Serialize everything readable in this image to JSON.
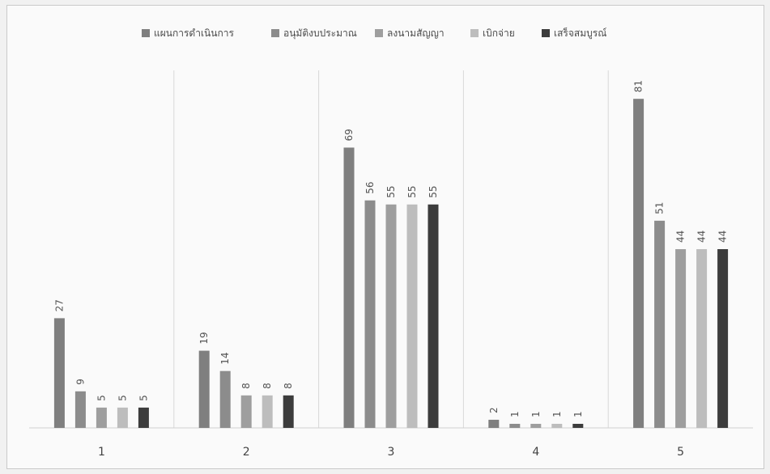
{
  "chart_data": {
    "type": "bar",
    "title": "",
    "xlabel": "",
    "ylabel": "",
    "ylim": [
      0,
      90
    ],
    "grid": false,
    "legend_position": "top",
    "categories": [
      "1",
      "2",
      "3",
      "4",
      "5"
    ],
    "series": [
      {
        "name": "แผนการดำเนินการ",
        "color": "#7f7f7f",
        "values": [
          27,
          19,
          69,
          2,
          81
        ]
      },
      {
        "name": "อนุมัติงบประมาณ",
        "color": "#8c8c8c",
        "values": [
          9,
          14,
          56,
          1,
          51
        ]
      },
      {
        "name": "ลงนามสัญญา",
        "color": "#9e9e9e",
        "values": [
          5,
          8,
          55,
          1,
          44
        ]
      },
      {
        "name": "เบิกจ่าย",
        "color": "#bdbdbd",
        "values": [
          5,
          8,
          55,
          1,
          44
        ]
      },
      {
        "name": "เสร็จสมบูรณ์",
        "color": "#3c3c3c",
        "values": [
          5,
          8,
          55,
          1,
          44
        ]
      }
    ]
  }
}
